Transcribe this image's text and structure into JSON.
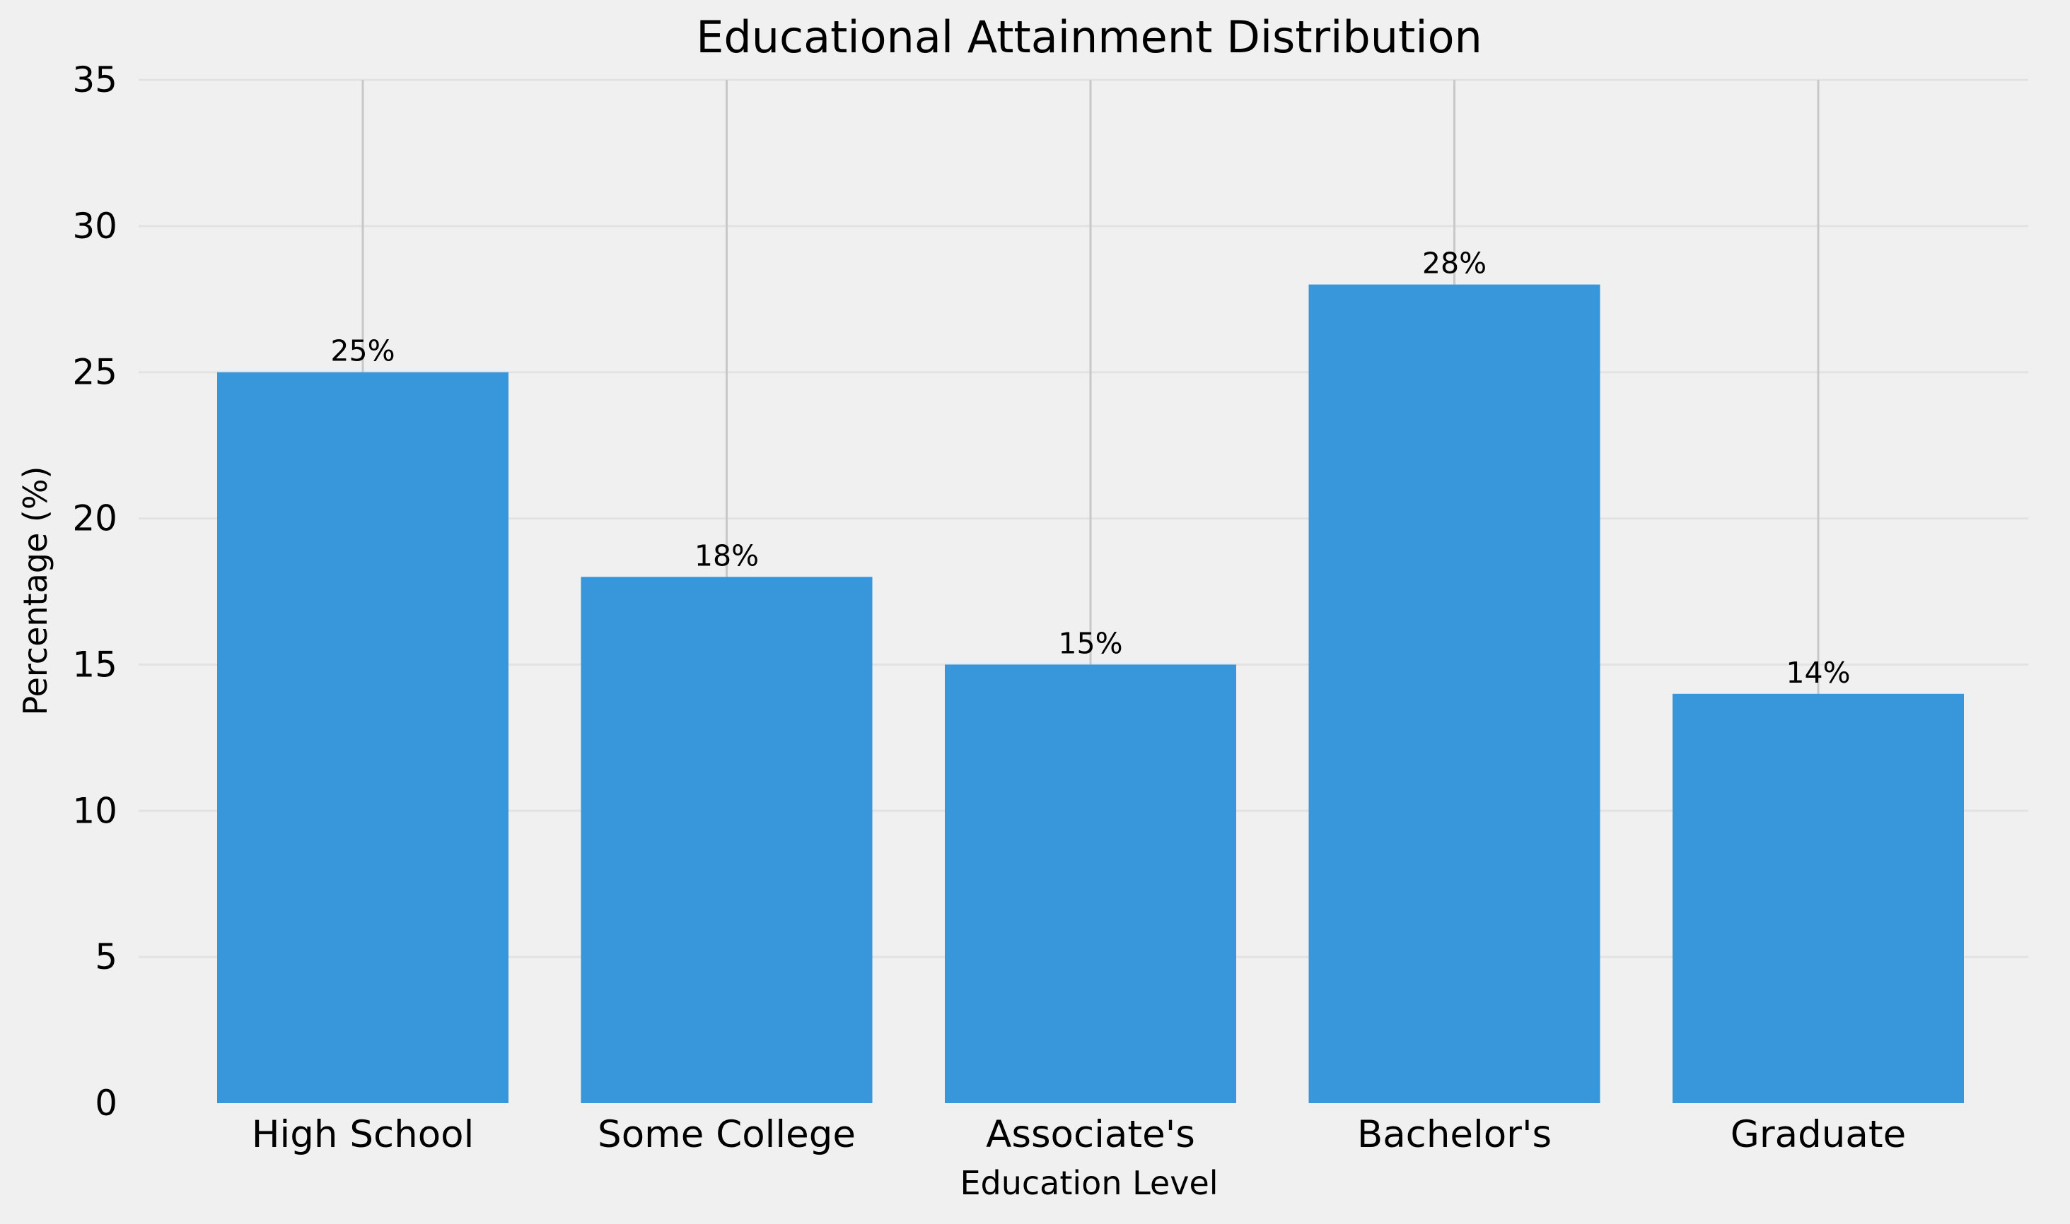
{
  "chart_data": {
    "type": "bar",
    "title": "Educational Attainment Distribution",
    "xlabel": "Education Level",
    "ylabel": "Percentage (%)",
    "categories": [
      "High School",
      "Some College",
      "Associate's",
      "Bachelor's",
      "Graduate"
    ],
    "values": [
      25,
      18,
      15,
      28,
      14
    ],
    "value_labels": [
      "25%",
      "18%",
      "15%",
      "28%",
      "14%"
    ],
    "ylim": [
      0,
      35
    ],
    "yticks": [
      "0",
      "5",
      "10",
      "15",
      "20",
      "25",
      "30",
      "35"
    ],
    "grid": true,
    "legend": "none",
    "colors": {
      "background": "#f0f0f0",
      "bar": "#3897db",
      "grid_horizontal": "#e2e2e2",
      "grid_vertical": "#c8c8c8"
    }
  }
}
